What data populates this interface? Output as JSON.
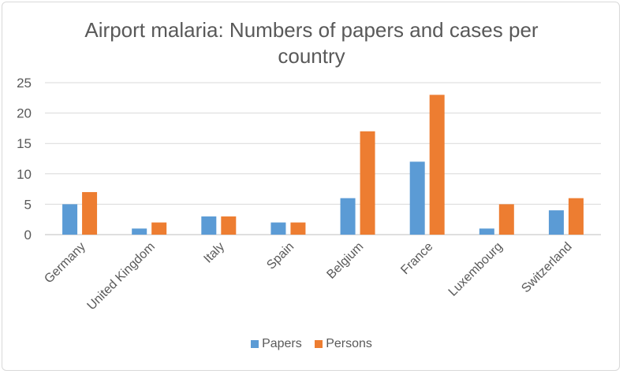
{
  "chart_data": {
    "type": "bar",
    "title": "Airport malaria: Numbers of papers and cases per country",
    "categories": [
      "Germany",
      "United Kingdom",
      "Italy",
      "Spain",
      "Belgium",
      "France",
      "Luxembourg",
      "Switzerland"
    ],
    "series": [
      {
        "name": "Papers",
        "color": "#5b9bd5",
        "values": [
          5,
          1,
          3,
          2,
          6,
          12,
          1,
          4
        ]
      },
      {
        "name": "Persons",
        "color": "#ed7d31",
        "values": [
          7,
          2,
          3,
          2,
          17,
          23,
          5,
          6
        ]
      }
    ],
    "xlabel": "",
    "ylabel": "",
    "ylim": [
      0,
      25
    ],
    "yticks": [
      0,
      5,
      10,
      15,
      20,
      25
    ],
    "grid": true,
    "legend_position": "bottom"
  }
}
